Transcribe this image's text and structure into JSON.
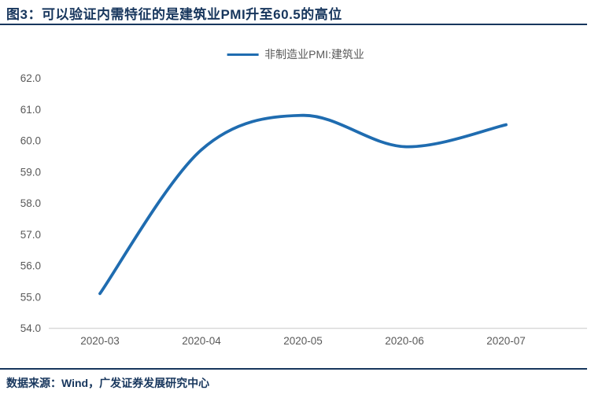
{
  "header": {
    "title": "图3：可以验证内需特征的是建筑业PMI升至60.5的高位"
  },
  "legend": {
    "label": "非制造业PMI:建筑业"
  },
  "footer": {
    "source": "数据来源：Wind，广发证券发展研究中心"
  },
  "colors": {
    "accent_navy": "#17365D",
    "line_blue": "#1F6CB0",
    "axis_text_gray": "#595959",
    "axis_line_gray": "#D9D9D9"
  },
  "chart_data": {
    "type": "line",
    "title": "非制造业PMI:建筑业",
    "categories": [
      "2020-03",
      "2020-04",
      "2020-05",
      "2020-06",
      "2020-07"
    ],
    "values": [
      55.1,
      59.7,
      60.8,
      59.8,
      60.5
    ],
    "ylim": [
      54.0,
      62.0
    ],
    "ytick_step": 1.0,
    "ytick_labels": [
      "54.0",
      "55.0",
      "56.0",
      "57.0",
      "58.0",
      "59.0",
      "60.0",
      "61.0",
      "62.0"
    ],
    "xlabel": "",
    "ylabel": "",
    "grid": false,
    "smooth": true,
    "legend_position": "top-center",
    "line_width": 3.8
  }
}
